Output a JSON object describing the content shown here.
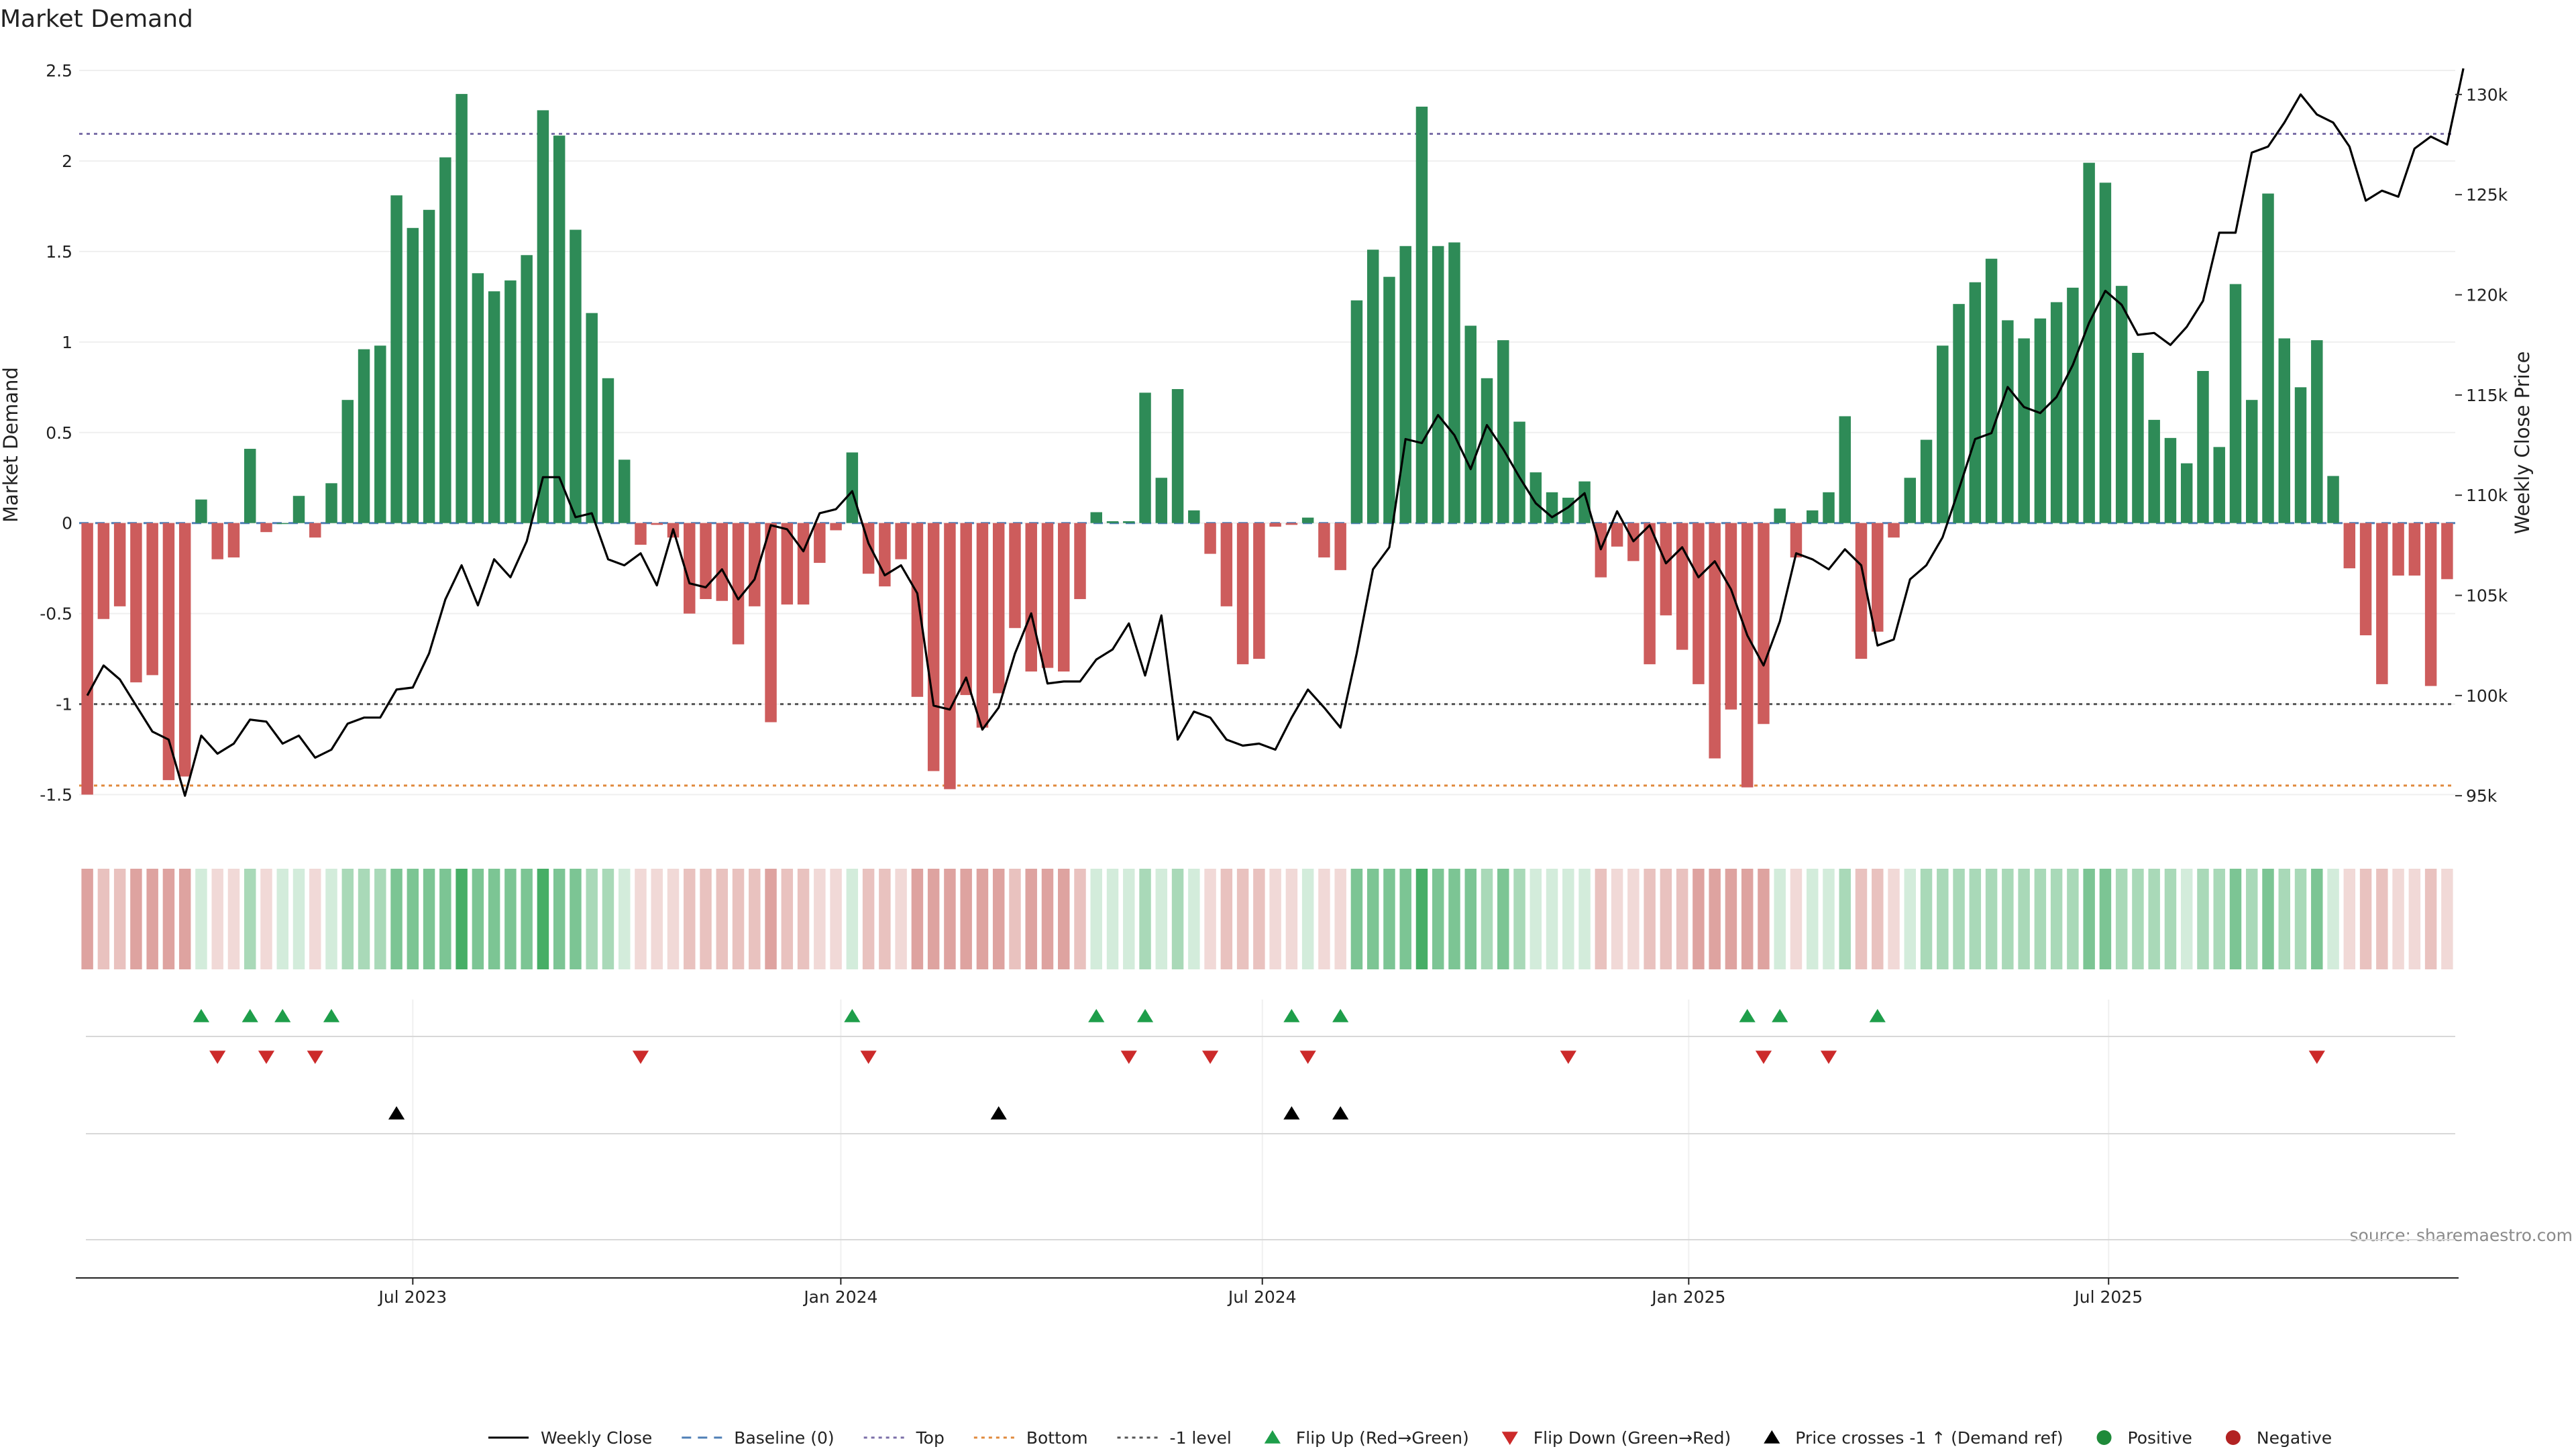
{
  "chart_data": {
    "type": "bar+line",
    "title": "Market Demand",
    "ylabel_left": "Market Demand",
    "ylabel_right": "Weekly Close Price",
    "source": "source: sharemaestro.com",
    "y_left": {
      "min": -1.65,
      "max": 2.5,
      "ticks": [
        2.5,
        2,
        1.5,
        1,
        0.5,
        0,
        -0.5,
        -1,
        -1.5
      ],
      "tick_labels": [
        "2.5",
        "2",
        "1.5",
        "1",
        "0.5",
        "0",
        "-0.5",
        "-1",
        "-1.5"
      ]
    },
    "y_right": {
      "min": 93700,
      "max": 131200,
      "ticks": [
        130000,
        125000,
        120000,
        115000,
        110000,
        105000,
        100000,
        95000
      ],
      "tick_labels": [
        "130k",
        "125k",
        "120k",
        "115k",
        "110k",
        "105k",
        "100k",
        "95k"
      ]
    },
    "x_ticks": [
      {
        "label": "Jul 2023",
        "week": 20
      },
      {
        "label": "Jan 2024",
        "week": 46.3
      },
      {
        "label": "Jul 2024",
        "week": 72.2
      },
      {
        "label": "Jan 2025",
        "week": 98.4
      },
      {
        "label": "Jul 2025",
        "week": 124.2
      }
    ],
    "reference_lines": {
      "top": 2.15,
      "bottom": -1.45,
      "minus_one": -1,
      "baseline": 0
    },
    "demand": [
      -1.5,
      -0.53,
      -0.46,
      -0.88,
      -0.84,
      -1.42,
      -1.4,
      0.13,
      -0.2,
      -0.19,
      0.41,
      -0.05,
      0,
      0.15,
      -0.08,
      0.22,
      0.68,
      0.96,
      0.98,
      1.81,
      1.63,
      1.73,
      2.02,
      2.37,
      1.38,
      1.28,
      1.34,
      1.48,
      2.28,
      2.14,
      1.62,
      1.16,
      0.8,
      0.35,
      -0.12,
      -0.01,
      -0.08,
      -0.5,
      -0.42,
      -0.43,
      -0.67,
      -0.46,
      -1.1,
      -0.45,
      -0.45,
      -0.22,
      -0.04,
      0.39,
      -0.28,
      -0.35,
      -0.2,
      -0.96,
      -1.37,
      -1.47,
      -0.95,
      -1.13,
      -0.94,
      -0.58,
      -0.82,
      -0.8,
      -0.82,
      -0.42,
      0.06,
      0.01,
      0.01,
      0.72,
      0.25,
      0.74,
      0.07,
      -0.17,
      -0.46,
      -0.78,
      -0.75,
      -0.02,
      -0.01,
      0.03,
      -0.19,
      -0.26,
      1.23,
      1.51,
      1.36,
      1.53,
      2.3,
      1.53,
      1.55,
      1.09,
      0.8,
      1.01,
      0.56,
      0.28,
      0.17,
      0.14,
      0.23,
      -0.3,
      -0.13,
      -0.21,
      -0.78,
      -0.51,
      -0.7,
      -0.89,
      -1.3,
      -1.03,
      -1.46,
      -1.11,
      0.08,
      -0.19,
      0.07,
      0.17,
      0.59,
      -0.75,
      -0.6,
      -0.08,
      0.25,
      0.46,
      0.98,
      1.21,
      1.33,
      1.46,
      1.12,
      1.02,
      1.13,
      1.22,
      1.3,
      1.99,
      1.88,
      1.31,
      0.94,
      0.57,
      0.47,
      0.33,
      0.84,
      0.42,
      1.32,
      0.68,
      1.82,
      1.02,
      0.75,
      1.01,
      0.26,
      -0.25,
      -0.62,
      -0.89,
      -0.29,
      -0.29,
      -0.9,
      -0.31
    ],
    "weekly_close": [
      100000,
      101500,
      100800,
      99500,
      98200,
      97800,
      95000,
      98000,
      97100,
      97600,
      98800,
      98700,
      97600,
      98000,
      96900,
      97300,
      98600,
      98900,
      98900,
      100300,
      100400,
      102100,
      104800,
      106500,
      104500,
      106800,
      105900,
      107700,
      110900,
      110900,
      108900,
      109100,
      106800,
      106500,
      107100,
      105500,
      108300,
      105600,
      105400,
      106300,
      104800,
      105800,
      108500,
      108300,
      107200,
      109100,
      109300,
      110200,
      107600,
      106000,
      106500,
      105100,
      99500,
      99300,
      100900,
      98300,
      99400,
      102100,
      104100,
      100600,
      100700,
      100700,
      101800,
      102300,
      103600,
      101000,
      104000,
      97800,
      99200,
      98900,
      97800,
      97500,
      97600,
      97300,
      98900,
      100300,
      99400,
      98400,
      102100,
      106300,
      107400,
      112800,
      112600,
      114000,
      113000,
      111300,
      113500,
      112300,
      110900,
      109600,
      108900,
      109400,
      110100,
      107300,
      109200,
      107700,
      108500,
      106600,
      107400,
      105900,
      106700,
      105300,
      103000,
      101500,
      103700,
      107100,
      106800,
      106300,
      107300,
      106500,
      102500,
      102800,
      105800,
      106500,
      107900,
      110300,
      112800,
      113100,
      115400,
      114400,
      114100,
      114900,
      116500,
      118600,
      120200,
      119500,
      118000,
      118100,
      117500,
      118400,
      119700,
      123100,
      123100,
      127100,
      127400,
      128600,
      130000,
      129000,
      128600,
      127400,
      124700,
      125200,
      124900,
      127300,
      127900,
      127500,
      131300
    ],
    "regime_shading": [
      -3,
      -2,
      -2,
      -3,
      -3,
      -3,
      -3,
      1,
      -1,
      -1,
      2,
      -1,
      1,
      1,
      -1,
      1,
      2,
      2,
      2,
      3,
      3,
      3,
      3,
      4,
      3,
      3,
      3,
      3,
      4,
      3,
      3,
      2,
      2,
      1,
      -1,
      -1,
      -1,
      -2,
      -2,
      -2,
      -2,
      -2,
      -3,
      -2,
      -2,
      -1,
      -1,
      1,
      -2,
      -2,
      -1,
      -3,
      -3,
      -3,
      -3,
      -3,
      -3,
      -2,
      -3,
      -3,
      -3,
      -2,
      1,
      1,
      1,
      2,
      1,
      2,
      1,
      -1,
      -2,
      -2,
      -2,
      -1,
      -1,
      1,
      -1,
      -1,
      3,
      3,
      3,
      3,
      4,
      3,
      3,
      3,
      2,
      3,
      2,
      1,
      1,
      1,
      1,
      -2,
      -1,
      -1,
      -2,
      -2,
      -2,
      -3,
      -3,
      -3,
      -3,
      -3,
      1,
      -1,
      1,
      1,
      2,
      -2,
      -2,
      -1,
      1,
      2,
      2,
      2,
      2,
      2,
      2,
      2,
      2,
      2,
      2,
      3,
      3,
      2,
      2,
      2,
      2,
      1,
      2,
      2,
      3,
      2,
      3,
      2,
      2,
      3,
      1,
      -1,
      -2,
      -2,
      -1,
      -1,
      -2,
      -1
    ],
    "flip_up_weeks": [
      7,
      10,
      12,
      15,
      47,
      62,
      65,
      74,
      77,
      102,
      104,
      110
    ],
    "flip_down_weeks": [
      8,
      11,
      14,
      34,
      48,
      64,
      69,
      75,
      91,
      103,
      107,
      137
    ],
    "price_cross_weeks": [
      19,
      56,
      74,
      77
    ],
    "colors": {
      "positive": "#2e8b57",
      "negative": "#cd5c5c",
      "price": "#000000",
      "top": "#7b6fa8",
      "bottom": "#e08a3c",
      "minus_one": "#555555",
      "baseline": "#4f7fb6",
      "flip_up": "#1e9e4a",
      "flip_down": "#cc2a2a",
      "cross": "#000000",
      "dot_positive": "#1f8a3a",
      "dot_negative": "#b22222"
    }
  },
  "legend": [
    {
      "key": "weekly-close",
      "label": "Weekly Close",
      "shape": "line",
      "color": "#000000"
    },
    {
      "key": "baseline",
      "label": "Baseline (0)",
      "shape": "dash",
      "color": "#4f7fb6"
    },
    {
      "key": "top",
      "label": "Top",
      "shape": "dot-line",
      "color": "#7b6fa8"
    },
    {
      "key": "bottom",
      "label": "Bottom",
      "shape": "dot-line",
      "color": "#e08a3c"
    },
    {
      "key": "minus-one",
      "label": "-1 level",
      "shape": "dot-line",
      "color": "#555555"
    },
    {
      "key": "flip-up",
      "label": "Flip Up (Red→Green)",
      "shape": "tri-up",
      "color": "#1e9e4a"
    },
    {
      "key": "flip-down",
      "label": "Flip Down (Green→Red)",
      "shape": "tri-down",
      "color": "#cc2a2a"
    },
    {
      "key": "price-cross",
      "label": "Price crosses -1 ↑ (Demand ref)",
      "shape": "tri-up",
      "color": "#000000"
    },
    {
      "key": "positive",
      "label": "Positive",
      "shape": "circle",
      "color": "#1f8a3a"
    },
    {
      "key": "negative",
      "label": "Negative",
      "shape": "circle",
      "color": "#b22222"
    }
  ]
}
